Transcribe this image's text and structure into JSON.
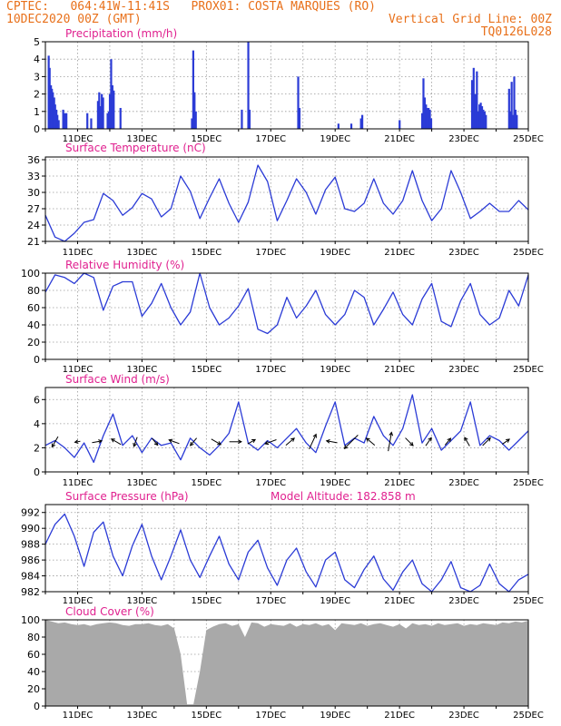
{
  "header": {
    "line1": "CPTEC:   064:41W-11:41S   PROX01: COSTA MARQUES (RO)",
    "date": "10DEC2020 00Z (GMT)",
    "grid_note": "Vertical Grid Line: 00Z",
    "model": "TQ0126L028"
  },
  "colors": {
    "header": "#e8701a",
    "title": "#e0208f",
    "series": "#2b3bd6",
    "cloud": "#a9a9a9",
    "axis": "#000000"
  },
  "x_tick_labels": [
    "11DEC",
    "13DEC",
    "15DEC",
    "17DEC",
    "19DEC",
    "21DEC",
    "23DEC",
    "25DEC"
  ],
  "chart_data": [
    {
      "type": "bar",
      "title": "Precipitation (mm/h)",
      "x_unit": "days after 10DEC2020 00Z",
      "ylim": [
        0,
        5
      ],
      "yticks": [
        0,
        1,
        2,
        3,
        4,
        5
      ],
      "grid": true,
      "bars": [
        {
          "x": 0.1,
          "y": 4.2
        },
        {
          "x": 0.13,
          "y": 3.5
        },
        {
          "x": 0.17,
          "y": 2.5
        },
        {
          "x": 0.2,
          "y": 2.3
        },
        {
          "x": 0.23,
          "y": 2.1
        },
        {
          "x": 0.27,
          "y": 1.8
        },
        {
          "x": 0.3,
          "y": 1.4
        },
        {
          "x": 0.34,
          "y": 1.1
        },
        {
          "x": 0.37,
          "y": 0.8
        },
        {
          "x": 0.41,
          "y": 0.5
        },
        {
          "x": 0.55,
          "y": 1.1
        },
        {
          "x": 0.6,
          "y": 0.9
        },
        {
          "x": 0.65,
          "y": 0.9
        },
        {
          "x": 1.3,
          "y": 0.9
        },
        {
          "x": 1.42,
          "y": 0.6
        },
        {
          "x": 1.63,
          "y": 1.6
        },
        {
          "x": 1.67,
          "y": 2.1
        },
        {
          "x": 1.71,
          "y": 1.3
        },
        {
          "x": 1.75,
          "y": 2.0
        },
        {
          "x": 1.79,
          "y": 1.8
        },
        {
          "x": 1.93,
          "y": 0.9
        },
        {
          "x": 1.97,
          "y": 1.0
        },
        {
          "x": 2.0,
          "y": 2.0
        },
        {
          "x": 2.04,
          "y": 4.0
        },
        {
          "x": 2.08,
          "y": 2.5
        },
        {
          "x": 2.12,
          "y": 2.2
        },
        {
          "x": 2.33,
          "y": 1.2
        },
        {
          "x": 4.55,
          "y": 0.6
        },
        {
          "x": 4.59,
          "y": 4.5
        },
        {
          "x": 4.63,
          "y": 2.1
        },
        {
          "x": 4.67,
          "y": 1.0
        },
        {
          "x": 6.1,
          "y": 1.1
        },
        {
          "x": 6.3,
          "y": 5.0
        },
        {
          "x": 6.34,
          "y": 1.1
        },
        {
          "x": 7.85,
          "y": 3.0
        },
        {
          "x": 7.89,
          "y": 1.2
        },
        {
          "x": 9.1,
          "y": 0.3
        },
        {
          "x": 9.5,
          "y": 0.3
        },
        {
          "x": 9.8,
          "y": 0.6
        },
        {
          "x": 9.84,
          "y": 0.8
        },
        {
          "x": 11.0,
          "y": 0.5
        },
        {
          "x": 11.7,
          "y": 0.9
        },
        {
          "x": 11.74,
          "y": 2.9
        },
        {
          "x": 11.78,
          "y": 1.8
        },
        {
          "x": 11.82,
          "y": 1.4
        },
        {
          "x": 11.86,
          "y": 1.2
        },
        {
          "x": 11.9,
          "y": 1.2
        },
        {
          "x": 11.94,
          "y": 1.1
        },
        {
          "x": 11.98,
          "y": 0.6
        },
        {
          "x": 13.25,
          "y": 2.8
        },
        {
          "x": 13.3,
          "y": 3.5
        },
        {
          "x": 13.35,
          "y": 2.0
        },
        {
          "x": 13.4,
          "y": 3.3
        },
        {
          "x": 13.44,
          "y": 1.0
        },
        {
          "x": 13.48,
          "y": 1.4
        },
        {
          "x": 13.52,
          "y": 1.5
        },
        {
          "x": 13.56,
          "y": 1.3
        },
        {
          "x": 13.6,
          "y": 1.1
        },
        {
          "x": 13.64,
          "y": 1.0
        },
        {
          "x": 13.68,
          "y": 0.8
        },
        {
          "x": 14.4,
          "y": 2.3
        },
        {
          "x": 14.44,
          "y": 1.0
        },
        {
          "x": 14.48,
          "y": 2.7
        },
        {
          "x": 14.52,
          "y": 0.8
        },
        {
          "x": 14.56,
          "y": 3.0
        },
        {
          "x": 14.6,
          "y": 1.1
        },
        {
          "x": 14.64,
          "y": 0.8
        }
      ]
    },
    {
      "type": "line",
      "title": "Surface Temperature (nC)",
      "ylim": [
        21,
        36.5
      ],
      "yticks": [
        21,
        24,
        27,
        30,
        33,
        36
      ],
      "grid": true,
      "x": [
        0,
        0.3,
        0.6,
        0.9,
        1.2,
        1.5,
        1.8,
        2.1,
        2.4,
        2.7,
        3.0,
        3.3,
        3.6,
        3.9,
        4.2,
        4.5,
        4.8,
        5.1,
        5.4,
        5.7,
        6.0,
        6.3,
        6.6,
        6.9,
        7.2,
        7.5,
        7.8,
        8.1,
        8.4,
        8.7,
        9.0,
        9.3,
        9.6,
        9.9,
        10.2,
        10.5,
        10.8,
        11.1,
        11.4,
        11.7,
        12.0,
        12.3,
        12.6,
        12.9,
        13.2,
        13.5,
        13.8,
        14.1,
        14.4,
        14.7,
        15.0
      ],
      "y": [
        25.8,
        21.8,
        21.0,
        22.5,
        24.5,
        25.0,
        29.8,
        28.5,
        25.8,
        27.2,
        29.8,
        28.8,
        25.5,
        27.0,
        33.0,
        30.2,
        25.2,
        29.0,
        32.5,
        28.0,
        24.5,
        28.2,
        35.0,
        32.0,
        24.8,
        28.5,
        32.5,
        30.0,
        26.0,
        30.5,
        32.8,
        27.0,
        26.5,
        28.0,
        32.5,
        28.0,
        26.0,
        28.5,
        34.0,
        28.5,
        24.8,
        27.0,
        34.0,
        30.0,
        25.2,
        26.5,
        28.0,
        26.5,
        26.5,
        28.5,
        26.8
      ]
    },
    {
      "type": "line",
      "title": "Relative Humidity (%)",
      "ylim": [
        0,
        100
      ],
      "yticks": [
        0,
        20,
        40,
        60,
        80,
        100
      ],
      "grid": true,
      "x": [
        0,
        0.3,
        0.6,
        0.9,
        1.2,
        1.5,
        1.8,
        2.1,
        2.4,
        2.7,
        3.0,
        3.3,
        3.6,
        3.9,
        4.2,
        4.5,
        4.8,
        5.1,
        5.4,
        5.7,
        6.0,
        6.3,
        6.6,
        6.9,
        7.2,
        7.5,
        7.8,
        8.1,
        8.4,
        8.7,
        9.0,
        9.3,
        9.6,
        9.9,
        10.2,
        10.5,
        10.8,
        11.1,
        11.4,
        11.7,
        12.0,
        12.3,
        12.6,
        12.9,
        13.2,
        13.5,
        13.8,
        14.1,
        14.4,
        14.7,
        15.0
      ],
      "y": [
        78,
        98,
        95,
        88,
        100,
        95,
        57,
        85,
        90,
        90,
        50,
        65,
        88,
        60,
        40,
        55,
        100,
        60,
        40,
        48,
        62,
        82,
        35,
        30,
        40,
        72,
        48,
        62,
        80,
        52,
        40,
        52,
        80,
        72,
        40,
        58,
        78,
        52,
        40,
        70,
        88,
        44,
        38,
        68,
        88,
        52,
        40,
        48,
        80,
        62,
        98
      ]
    },
    {
      "type": "line",
      "title": "Surface Wind (m/s)",
      "ylim": [
        0,
        7
      ],
      "yticks": [
        0,
        2,
        4,
        6
      ],
      "grid": true,
      "x": [
        0,
        0.3,
        0.6,
        0.9,
        1.2,
        1.5,
        1.8,
        2.1,
        2.4,
        2.7,
        3.0,
        3.3,
        3.6,
        3.9,
        4.2,
        4.5,
        4.8,
        5.1,
        5.4,
        5.7,
        6.0,
        6.3,
        6.6,
        6.9,
        7.2,
        7.5,
        7.8,
        8.1,
        8.4,
        8.7,
        9.0,
        9.3,
        9.6,
        9.9,
        10.2,
        10.5,
        10.8,
        11.1,
        11.4,
        11.7,
        12.0,
        12.3,
        12.6,
        12.9,
        13.2,
        13.5,
        13.8,
        14.1,
        14.4,
        14.7,
        15.0
      ],
      "y": [
        2.2,
        2.6,
        2.0,
        1.2,
        2.4,
        0.8,
        3.0,
        4.8,
        2.2,
        3.0,
        1.6,
        2.8,
        2.2,
        2.4,
        1.0,
        2.8,
        2.0,
        1.4,
        2.2,
        3.2,
        5.8,
        2.4,
        1.8,
        2.6,
        2.0,
        2.8,
        3.6,
        2.4,
        1.6,
        3.8,
        5.8,
        2.2,
        2.8,
        2.4,
        4.6,
        3.0,
        2.2,
        3.6,
        6.4,
        2.4,
        3.6,
        1.8,
        2.6,
        3.4,
        5.8,
        2.2,
        3.0,
        2.6,
        1.8,
        2.6,
        3.4
      ],
      "arrows": [
        {
          "x": 0.3,
          "speed": 2.2,
          "dir_deg": 210
        },
        {
          "x": 1.0,
          "speed": 1.0,
          "dir_deg": 260
        },
        {
          "x": 1.6,
          "speed": 1.8,
          "dir_deg": 80
        },
        {
          "x": 2.2,
          "speed": 2.0,
          "dir_deg": 300
        },
        {
          "x": 2.8,
          "speed": 1.8,
          "dir_deg": 200
        },
        {
          "x": 3.4,
          "speed": 1.6,
          "dir_deg": 140
        },
        {
          "x": 4.0,
          "speed": 2.0,
          "dir_deg": 290
        },
        {
          "x": 4.6,
          "speed": 1.8,
          "dir_deg": 220
        },
        {
          "x": 5.3,
          "speed": 2.0,
          "dir_deg": 120
        },
        {
          "x": 5.9,
          "speed": 2.2,
          "dir_deg": 90
        },
        {
          "x": 6.4,
          "speed": 1.6,
          "dir_deg": 60
        },
        {
          "x": 7.0,
          "speed": 2.2,
          "dir_deg": 250
        },
        {
          "x": 7.6,
          "speed": 2.0,
          "dir_deg": 50
        },
        {
          "x": 8.3,
          "speed": 3.0,
          "dir_deg": 25
        },
        {
          "x": 8.9,
          "speed": 2.0,
          "dir_deg": 280
        },
        {
          "x": 9.5,
          "speed": 3.5,
          "dir_deg": 225
        },
        {
          "x": 10.1,
          "speed": 2.0,
          "dir_deg": 310
        },
        {
          "x": 10.7,
          "speed": 3.5,
          "dir_deg": 10
        },
        {
          "x": 11.3,
          "speed": 2.0,
          "dir_deg": 135
        },
        {
          "x": 11.9,
          "speed": 1.8,
          "dir_deg": 35
        },
        {
          "x": 12.5,
          "speed": 1.6,
          "dir_deg": 40
        },
        {
          "x": 13.1,
          "speed": 1.8,
          "dir_deg": 330
        },
        {
          "x": 13.7,
          "speed": 2.0,
          "dir_deg": 45
        },
        {
          "x": 14.3,
          "speed": 1.6,
          "dir_deg": 55
        }
      ]
    },
    {
      "type": "line",
      "title": "Surface Pressure (hPa)",
      "annotation": "Model Altitude: 182.858  m",
      "ylim": [
        982,
        993
      ],
      "yticks": [
        982,
        984,
        986,
        988,
        990,
        992
      ],
      "grid": true,
      "x": [
        0,
        0.3,
        0.6,
        0.9,
        1.2,
        1.5,
        1.8,
        2.1,
        2.4,
        2.7,
        3.0,
        3.3,
        3.6,
        3.9,
        4.2,
        4.5,
        4.8,
        5.1,
        5.4,
        5.7,
        6.0,
        6.3,
        6.6,
        6.9,
        7.2,
        7.5,
        7.8,
        8.1,
        8.4,
        8.7,
        9.0,
        9.3,
        9.6,
        9.9,
        10.2,
        10.5,
        10.8,
        11.1,
        11.4,
        11.7,
        12.0,
        12.3,
        12.6,
        12.9,
        13.2,
        13.5,
        13.8,
        14.1,
        14.4,
        14.7,
        15.0
      ],
      "y": [
        988.0,
        990.5,
        991.8,
        989.0,
        985.2,
        989.5,
        990.8,
        986.5,
        984.0,
        987.8,
        990.5,
        986.5,
        983.5,
        986.5,
        989.8,
        986.0,
        983.8,
        986.5,
        989.0,
        985.5,
        983.5,
        987.0,
        988.5,
        985.0,
        982.8,
        986.0,
        987.5,
        984.5,
        982.6,
        986.0,
        987.0,
        983.5,
        982.5,
        984.8,
        986.5,
        983.6,
        982.2,
        984.5,
        986.0,
        983.0,
        982.0,
        983.5,
        985.8,
        982.5,
        981.5,
        982.8,
        985.5,
        983.0,
        981.5,
        983.5,
        984.2
      ]
    },
    {
      "type": "area",
      "title": "Cloud Cover (%)",
      "ylim": [
        0,
        100
      ],
      "yticks": [
        0,
        20,
        40,
        60,
        80,
        100
      ],
      "grid": true,
      "x": [
        0,
        0.2,
        0.4,
        0.6,
        0.8,
        1.0,
        1.2,
        1.4,
        1.6,
        1.8,
        2.0,
        2.2,
        2.4,
        2.6,
        2.8,
        3.0,
        3.2,
        3.4,
        3.6,
        3.8,
        4.0,
        4.2,
        4.4,
        4.6,
        4.8,
        5.0,
        5.2,
        5.4,
        5.6,
        5.8,
        6.0,
        6.2,
        6.4,
        6.6,
        6.8,
        7.0,
        7.2,
        7.4,
        7.6,
        7.8,
        8.0,
        8.2,
        8.4,
        8.6,
        8.8,
        9.0,
        9.2,
        9.4,
        9.6,
        9.8,
        10.0,
        10.2,
        10.4,
        10.6,
        10.8,
        11.0,
        11.2,
        11.4,
        11.6,
        11.8,
        12.0,
        12.2,
        12.4,
        12.6,
        12.8,
        13.0,
        13.2,
        13.4,
        13.6,
        13.8,
        14.0,
        14.2,
        14.4,
        14.6,
        14.8,
        15.0
      ],
      "y": [
        100,
        98,
        96,
        97,
        95,
        94,
        95,
        93,
        95,
        96,
        97,
        96,
        94,
        93,
        95,
        95,
        96,
        94,
        93,
        95,
        90,
        60,
        2,
        2,
        40,
        88,
        92,
        95,
        96,
        93,
        95,
        80,
        97,
        96,
        92,
        95,
        94,
        93,
        96,
        92,
        95,
        94,
        96,
        93,
        95,
        88,
        96,
        95,
        94,
        96,
        93,
        95,
        96,
        94,
        92,
        95,
        90,
        96,
        94,
        95,
        93,
        96,
        94,
        95,
        96,
        93,
        95,
        94,
        96,
        95,
        94,
        97,
        96,
        98,
        97,
        99
      ]
    }
  ]
}
